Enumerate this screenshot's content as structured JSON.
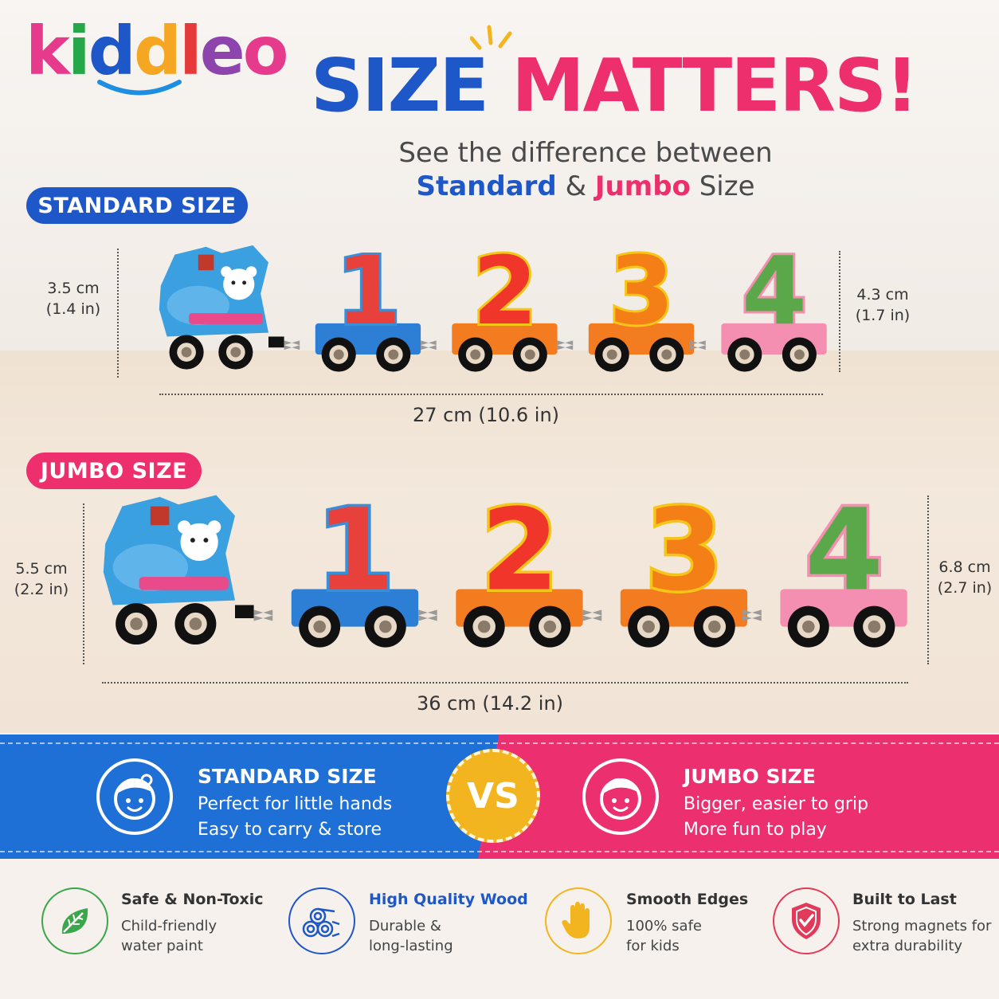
{
  "logo": {
    "letters": [
      "k",
      "i",
      "d",
      "d",
      "l",
      "e",
      "o"
    ],
    "colors": [
      "#e63a8c",
      "#26a84a",
      "#1e57c8",
      "#f5a623",
      "#e63a3a",
      "#8e44ad",
      "#e63a8c"
    ]
  },
  "title": {
    "part1": "SIZE",
    "part2": "MATTERS!"
  },
  "subtitle": {
    "line1": "See the difference between",
    "standard": "Standard",
    "amp": "&",
    "jumbo": "Jumbo",
    "size": "Size"
  },
  "standard": {
    "label": "STANDARD SIZE",
    "left_dim": {
      "cm": "3.5 cm",
      "in": "(1.4 in)"
    },
    "right_dim": {
      "cm": "4.3 cm",
      "in": "(1.7 in)"
    },
    "length": "27 cm (10.6 in)"
  },
  "jumbo": {
    "label": "JUMBO SIZE",
    "left_dim": {
      "cm": "5.5 cm",
      "in": "(2.2 in)"
    },
    "right_dim": {
      "cm": "6.8 cm",
      "in": "(2.7 in)"
    },
    "length": "36 cm (14.2 in)"
  },
  "train": {
    "numbers": [
      "1",
      "2",
      "3",
      "4"
    ],
    "number_colors": [
      "#e8413b",
      "#f0352b",
      "#f57f17",
      "#5aa84a"
    ],
    "edge_colors": [
      "#3a8ed8",
      "#f5c518",
      "#f5c518",
      "#f48fb1"
    ],
    "car_colors": [
      "#2d7fd6",
      "#f47c20",
      "#f47c20",
      "#f48fb1"
    ]
  },
  "compare": {
    "standard": {
      "title": "STANDARD SIZE",
      "line1": "Perfect for little hands",
      "line2": "Easy to carry & store"
    },
    "vs": "VS",
    "jumbo": {
      "title": "JUMBO SIZE",
      "line1": "Bigger, easier to grip",
      "line2": "More fun to play"
    }
  },
  "features": [
    {
      "icon": "leaf-icon",
      "title": "Safe & Non-Toxic",
      "line1": "Child-friendly",
      "line2": "water paint",
      "color": "#3aa74a"
    },
    {
      "icon": "wood-logs-icon",
      "title": "High Quality Wood",
      "line1": "Durable &",
      "line2": "long-lasting",
      "color": "#1e57c8"
    },
    {
      "icon": "hand-icon",
      "title": "Smooth Edges",
      "line1": "100% safe",
      "line2": "for kids",
      "color": "#f2b51f"
    },
    {
      "icon": "shield-check-icon",
      "title": "Built to Last",
      "line1": "Strong magnets for",
      "line2": "extra durability",
      "color": "#e23b5a"
    }
  ]
}
